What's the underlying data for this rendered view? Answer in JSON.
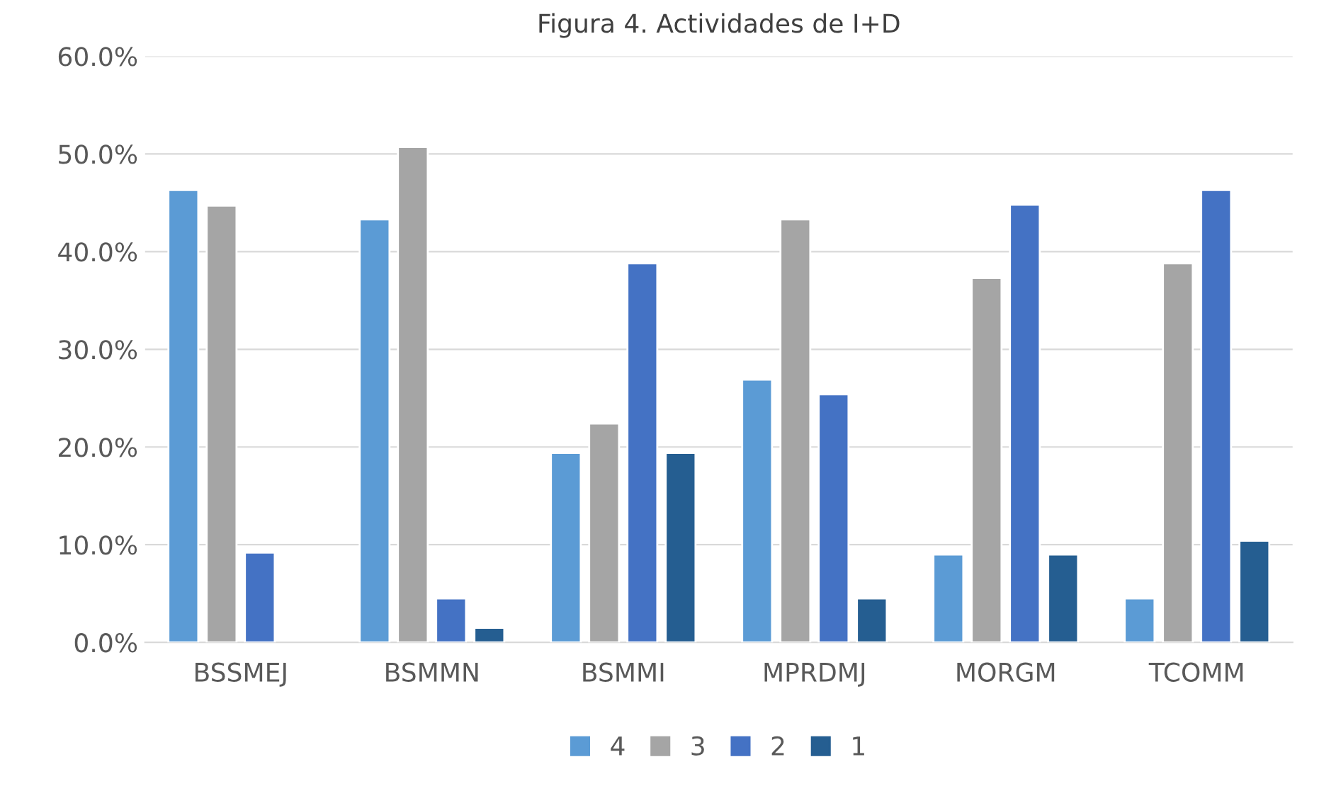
{
  "chart_data": {
    "type": "bar",
    "title": "Figura 4. Actividades de I+D",
    "categories": [
      "BSSMEJ",
      "BSMMN",
      "BSMMI",
      "MPRDMJ",
      "MORGM",
      "TCOMM"
    ],
    "series": [
      {
        "name": "4",
        "color": "#5b9bd5",
        "values": [
          46.3,
          43.3,
          19.4,
          26.9,
          9.0,
          4.5
        ]
      },
      {
        "name": "3",
        "color": "#a5a5a5",
        "values": [
          44.7,
          50.7,
          22.4,
          43.3,
          37.3,
          38.8
        ]
      },
      {
        "name": "2",
        "color": "#4472c4",
        "values": [
          9.2,
          4.5,
          38.8,
          25.4,
          44.8,
          46.3
        ]
      },
      {
        "name": "1",
        "color": "#255e91",
        "values": [
          null,
          1.5,
          19.4,
          4.5,
          9.0,
          10.4
        ]
      }
    ],
    "ylim": [
      0,
      60
    ],
    "yticks": [
      {
        "value": 0,
        "label": "0.0%"
      },
      {
        "value": 10,
        "label": "10.0%"
      },
      {
        "value": 20,
        "label": "20.0%"
      },
      {
        "value": 30,
        "label": "30.0%"
      },
      {
        "value": 40,
        "label": "40.0%"
      },
      {
        "value": 50,
        "label": "50.0%"
      },
      {
        "value": 60,
        "label": "60.0%"
      }
    ],
    "grid": "y",
    "legend": "bottom"
  }
}
